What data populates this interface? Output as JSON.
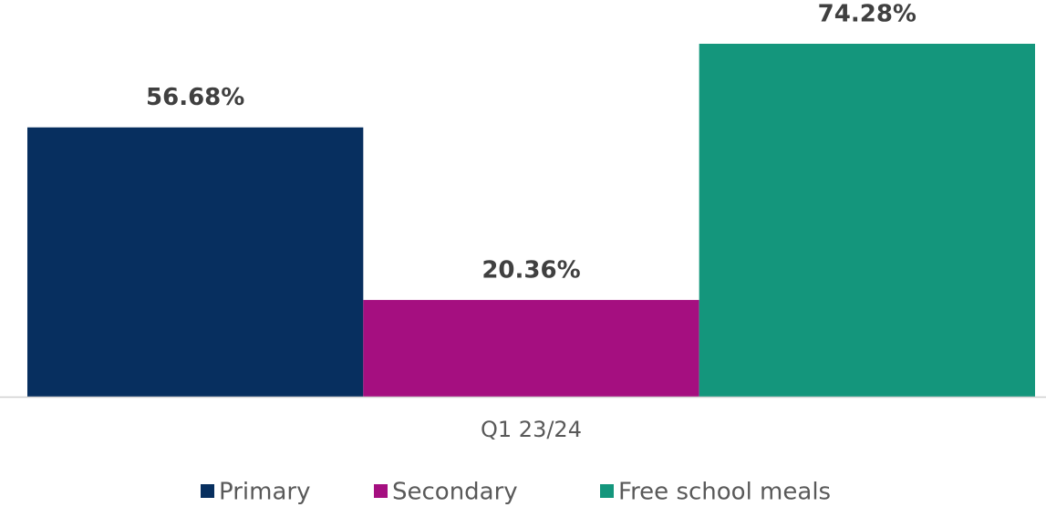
{
  "chart_data": {
    "type": "bar",
    "categories": [
      "Q1 23/24"
    ],
    "series": [
      {
        "name": "Primary",
        "color": "#072f5f",
        "values": [
          56.68
        ],
        "value_labels": [
          "56.68%"
        ]
      },
      {
        "name": "Secondary",
        "color": "#a50f80",
        "values": [
          20.36
        ],
        "value_labels": [
          "20.36%"
        ]
      },
      {
        "name": "Free school meals",
        "color": "#14967c",
        "values": [
          74.28
        ],
        "value_labels": [
          "74.28%"
        ]
      }
    ],
    "legend": "bottom"
  }
}
